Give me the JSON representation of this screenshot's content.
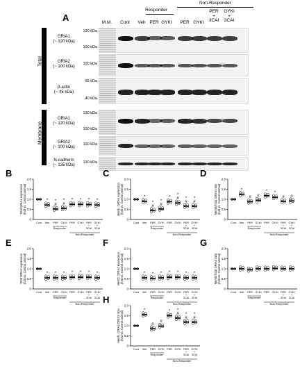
{
  "figure": {
    "panel_a_label": "A",
    "lanes": [
      "M.M.",
      "Cont",
      "Veh",
      "PER",
      "GYKI",
      "PER",
      "GYKI",
      "PER\n+\n3CAI",
      "GYKI\n+\n3CAI"
    ],
    "group_responder": "Responder",
    "group_nonresponder": "Non-Responder",
    "section_total": "Total",
    "section_membrane": "Membrane",
    "blots": [
      {
        "name": "GRIA1\n(~ 120 kDa)",
        "mw": [
          "130 kDa",
          "100 kDa"
        ],
        "intensity": [
          1.0,
          0.72,
          0.52,
          0.55,
          0.75,
          0.75,
          0.74,
          0.72
        ]
      },
      {
        "name": "GRIA2\n(~ 100 kDa)",
        "mw": [
          "100 kDa"
        ],
        "intensity": [
          1.0,
          0.55,
          0.55,
          0.55,
          0.58,
          0.58,
          0.58,
          0.55
        ]
      },
      {
        "name": "β-actin\n(~ 45 kDa)",
        "mw": [
          "55 kDa",
          "40 kDa"
        ],
        "intensity": [
          1.0,
          1.0,
          1.0,
          1.0,
          1.0,
          1.0,
          1.0,
          1.0
        ]
      },
      {
        "name": "GRIA1\n(~ 120 kDa)",
        "mw": [
          "130 kDa",
          "100 kDa"
        ],
        "intensity": [
          1.0,
          0.9,
          0.45,
          0.52,
          0.88,
          0.82,
          0.66,
          0.66
        ]
      },
      {
        "name": "GRIA2\n(~ 100 kDa)",
        "mw": [
          "100 kDa"
        ],
        "intensity": [
          1.0,
          0.55,
          0.52,
          0.55,
          0.58,
          0.58,
          0.55,
          0.55
        ]
      },
      {
        "name": "N-cadherin\n(~ 135 kDa)",
        "mw": [
          "130 kDa"
        ],
        "intensity": [
          1.0,
          1.0,
          1.0,
          1.0,
          1.0,
          1.0,
          1.0,
          1.0
        ]
      }
    ],
    "x_categories": [
      "Cont",
      "Veh",
      "PER",
      "GYKI",
      "PER",
      "GYKI",
      "PER\n+\n3CAI",
      "GYKI\n+\n3CAI"
    ],
    "x_group_responder": "Responder",
    "x_group_nonresponder": "Non-Responder",
    "y_ticks": [
      "0",
      "0.5",
      "1.0",
      "1.5",
      "2.0"
    ]
  },
  "chart_data": [
    {
      "panel": "B",
      "type": "scatter",
      "ylabel": "Total GRIA1 expression\n(fold vs. Control animal)",
      "ylim": [
        0,
        2.0
      ],
      "means": [
        1.0,
        0.72,
        0.52,
        0.55,
        0.75,
        0.75,
        0.74,
        0.72
      ],
      "marks": [
        "",
        "*",
        "*\n#",
        "*\n#",
        "*",
        "*",
        "*",
        "*"
      ]
    },
    {
      "panel": "C",
      "type": "scatter",
      "ylabel": "Memb. GRIA1 expression\n(fold vs. Control animal)",
      "ylim": [
        0,
        2.0
      ],
      "means": [
        1.0,
        0.9,
        0.45,
        0.52,
        0.88,
        0.82,
        0.66,
        0.66
      ],
      "marks": [
        "",
        "*",
        "*\n#",
        "*\n#",
        "*",
        "*\n#",
        "*\n#",
        "*\n#"
      ]
    },
    {
      "panel": "D",
      "type": "scatter",
      "ylabel": "Memb/Total GRIA1 ratio\n(fold vs. Control animal)",
      "ylim": [
        0,
        2.0
      ],
      "means": [
        1.0,
        1.25,
        0.88,
        0.95,
        1.18,
        1.1,
        0.9,
        0.92
      ],
      "marks": [
        "",
        "*",
        "#",
        "#",
        "*",
        "*",
        "#",
        "#"
      ]
    },
    {
      "panel": "E",
      "type": "scatter",
      "ylabel": "Total GRIA2 expression\n(fold vs. Control animal)",
      "ylim": [
        0,
        2.0
      ],
      "means": [
        1.0,
        0.55,
        0.55,
        0.55,
        0.58,
        0.58,
        0.58,
        0.55
      ],
      "marks": [
        "",
        "*",
        "*",
        "*",
        "*",
        "*",
        "*",
        "*"
      ]
    },
    {
      "panel": "F",
      "type": "scatter",
      "ylabel": "Memb. GRIA2 expression\n(fold vs. Control animal)",
      "ylim": [
        0,
        2.0
      ],
      "means": [
        1.0,
        0.55,
        0.52,
        0.55,
        0.58,
        0.58,
        0.55,
        0.55
      ],
      "marks": [
        "",
        "*",
        "*",
        "*",
        "*",
        "*",
        "*",
        "*"
      ]
    },
    {
      "panel": "G",
      "type": "scatter",
      "ylabel": "Memb/Total GRIA2 ratio\n(fold vs. Control animal)",
      "ylim": [
        0,
        2.0
      ],
      "means": [
        1.0,
        1.0,
        0.95,
        1.0,
        1.0,
        1.02,
        1.0,
        1.0
      ],
      "marks": [
        "",
        "",
        "",
        "",
        "",
        "",
        "",
        ""
      ]
    },
    {
      "panel": "H",
      "type": "scatter",
      "ylabel": "Memb. GRIA1/GRIA2 ratio\n(fold vs. Control animal)",
      "ylim": [
        0,
        2.0
      ],
      "means": [
        1.0,
        1.55,
        0.85,
        0.98,
        1.5,
        1.38,
        1.18,
        1.18
      ],
      "marks": [
        "",
        "*",
        "#",
        "#",
        "*",
        "*\n#",
        "*\n#",
        "*\n#"
      ]
    }
  ]
}
